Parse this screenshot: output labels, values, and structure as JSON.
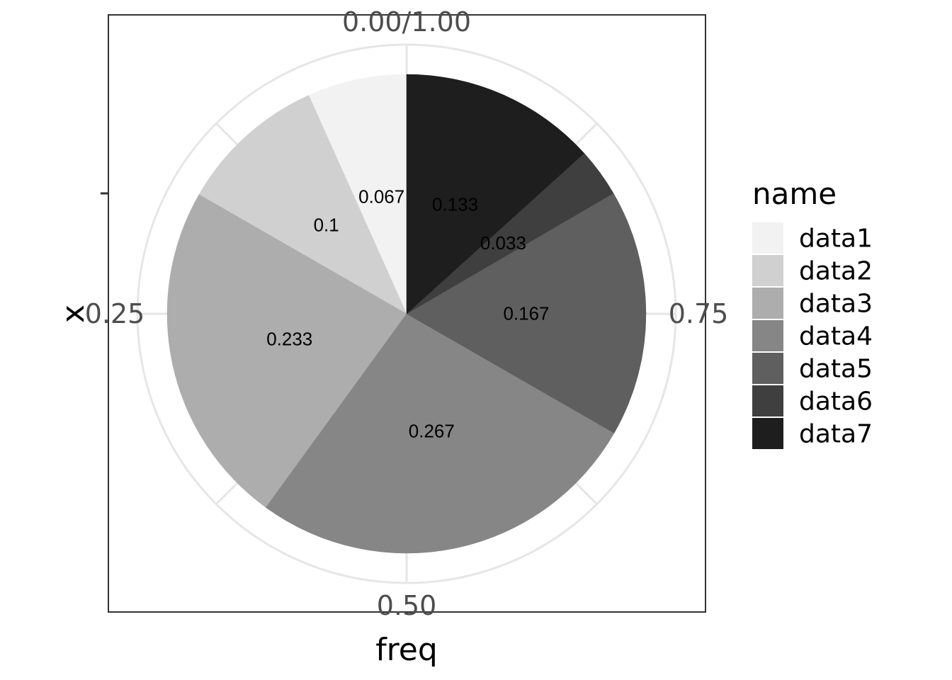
{
  "chart_data": {
    "type": "pie",
    "xlabel": "freq",
    "ylabel": "x",
    "theta_ticks": [
      {
        "value": 0,
        "label": "0.00/1.00"
      },
      {
        "value": 0.25,
        "label": "0.25"
      },
      {
        "value": 0.5,
        "label": "0.50"
      },
      {
        "value": 0.75,
        "label": "0.75"
      }
    ],
    "direction": "counterclockwise",
    "grid": true,
    "legend": {
      "title": "name",
      "placement": "right",
      "entries": [
        "data1",
        "data2",
        "data3",
        "data4",
        "data5",
        "data6",
        "data7"
      ]
    },
    "slices": [
      {
        "name": "data1",
        "value": 0.067,
        "label": "0.067",
        "color": "#f2f2f2"
      },
      {
        "name": "data2",
        "value": 0.1,
        "label": "0.1",
        "color": "#d0d0d0"
      },
      {
        "name": "data3",
        "value": 0.233,
        "label": "0.233",
        "color": "#adadad"
      },
      {
        "name": "data4",
        "value": 0.267,
        "label": "0.267",
        "color": "#868686"
      },
      {
        "name": "data5",
        "value": 0.167,
        "label": "0.167",
        "color": "#5f5f5f"
      },
      {
        "name": "data6",
        "value": 0.033,
        "label": "0.033",
        "color": "#3f3f3f"
      },
      {
        "name": "data7",
        "value": 0.133,
        "label": "0.133",
        "color": "#1e1e1e"
      }
    ]
  }
}
